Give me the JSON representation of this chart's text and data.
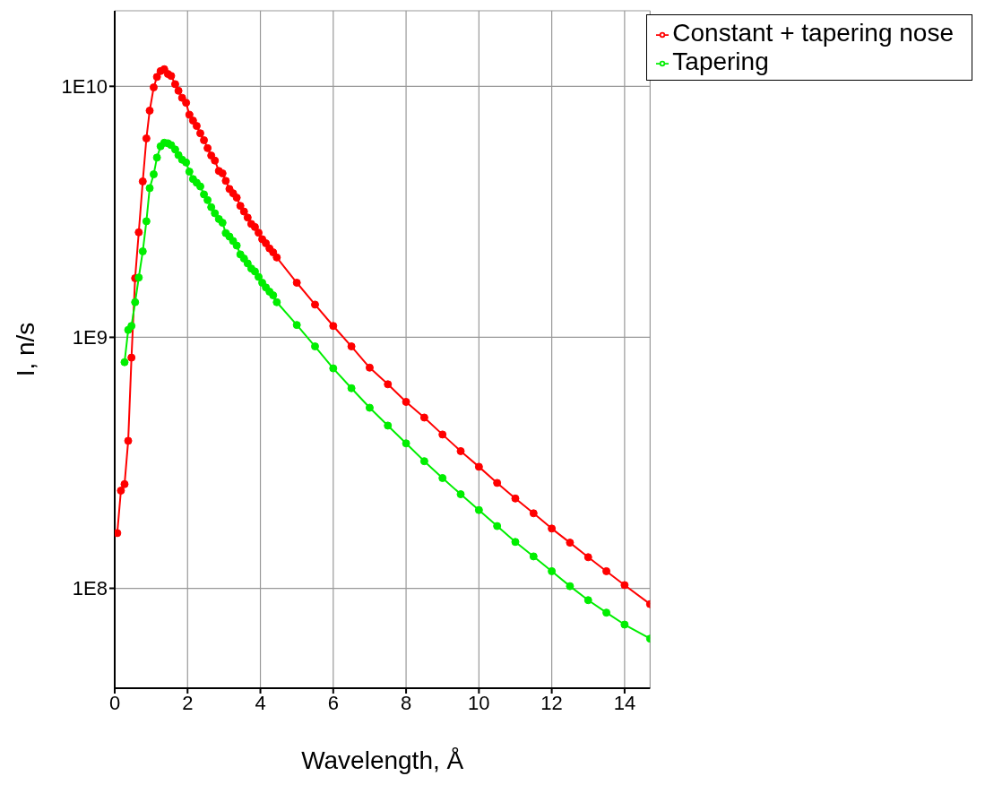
{
  "chart_data": {
    "type": "line",
    "xlabel": "Wavelength, Å",
    "ylabel": "I, n/s",
    "log": "y",
    "grid": true,
    "legend": "top right",
    "marker": "circle",
    "line_style": "solid",
    "xlim": [
      0,
      14.7
    ],
    "xticks": [
      0,
      2,
      4,
      6,
      8,
      10,
      12,
      14
    ],
    "ylim": [
      40000000,
      20000000000
    ],
    "yticks": [
      {
        "value": 100000000,
        "label": "1E8"
      },
      {
        "value": 1000000000,
        "label": "1E9"
      },
      {
        "value": 10000000000,
        "label": "1E10"
      }
    ],
    "series": [
      {
        "name": "Constant + tapering nose",
        "color": "#ff0000",
        "x": [
          0.07,
          0.17,
          0.27,
          0.37,
          0.46,
          0.56,
          0.66,
          0.77,
          0.87,
          0.96,
          1.07,
          1.16,
          1.26,
          1.36,
          1.46,
          1.55,
          1.66,
          1.75,
          1.85,
          1.96,
          2.05,
          2.15,
          2.25,
          2.35,
          2.45,
          2.55,
          2.65,
          2.75,
          2.86,
          2.96,
          3.05,
          3.15,
          3.25,
          3.35,
          3.45,
          3.55,
          3.65,
          3.75,
          3.85,
          3.95,
          4.05,
          4.15,
          4.25,
          4.35,
          4.45,
          5,
          5.5,
          6,
          6.5,
          7,
          7.5,
          8,
          8.5,
          9,
          9.5,
          10,
          10.5,
          11,
          11.5,
          12,
          12.5,
          13,
          13.5,
          14,
          14.7
        ],
        "values": [
          166000000,
          245000000,
          260000000,
          387000000,
          830000000,
          1720000000,
          2620000000,
          4180000000,
          6200000000,
          8000000000,
          9900000000,
          10900000000,
          11500000000,
          11700000000,
          11200000000,
          11000000000,
          10200000000,
          9600000000,
          9000000000,
          8600000000,
          7700000000,
          7300000000,
          6950000000,
          6500000000,
          6100000000,
          5670000000,
          5300000000,
          5060000000,
          4600000000,
          4500000000,
          4200000000,
          3900000000,
          3750000000,
          3600000000,
          3340000000,
          3170000000,
          3000000000,
          2830000000,
          2750000000,
          2610000000,
          2460000000,
          2370000000,
          2260000000,
          2180000000,
          2080000000,
          1650000000,
          1350000000,
          1110000000,
          920000000,
          757000000,
          650000000,
          553000000,
          479000000,
          410000000,
          352000000,
          305000000,
          263000000,
          228000000,
          199000000,
          173000000,
          152000000,
          133000000,
          117000000,
          103000000,
          86500000
        ]
      },
      {
        "name": "Tapering",
        "color": "#00ee00",
        "x": [
          0.27,
          0.37,
          0.46,
          0.56,
          0.66,
          0.77,
          0.87,
          0.96,
          1.07,
          1.16,
          1.26,
          1.36,
          1.46,
          1.55,
          1.66,
          1.75,
          1.85,
          1.96,
          2.05,
          2.15,
          2.25,
          2.35,
          2.45,
          2.55,
          2.65,
          2.75,
          2.86,
          2.96,
          3.05,
          3.15,
          3.25,
          3.35,
          3.45,
          3.55,
          3.65,
          3.75,
          3.85,
          3.95,
          4.05,
          4.15,
          4.25,
          4.35,
          4.45,
          5,
          5.5,
          6,
          6.5,
          7,
          7.5,
          8,
          8.5,
          9,
          9.5,
          10,
          10.5,
          11,
          11.5,
          12,
          12.5,
          13,
          13.5,
          14,
          14.7
        ],
        "values": [
          796000000,
          1070000000,
          1110000000,
          1380000000,
          1730000000,
          2200000000,
          2900000000,
          3930000000,
          4460000000,
          5200000000,
          5770000000,
          5960000000,
          5930000000,
          5830000000,
          5600000000,
          5320000000,
          5100000000,
          4970000000,
          4570000000,
          4270000000,
          4130000000,
          3990000000,
          3710000000,
          3520000000,
          3300000000,
          3120000000,
          2960000000,
          2860000000,
          2600000000,
          2520000000,
          2420000000,
          2320000000,
          2140000000,
          2060000000,
          1970000000,
          1880000000,
          1830000000,
          1740000000,
          1650000000,
          1580000000,
          1520000000,
          1470000000,
          1380000000,
          1120000000,
          920000000,
          752000000,
          627000000,
          524000000,
          445000000,
          378000000,
          321000000,
          275000000,
          237000000,
          205000000,
          177000000,
          153000000,
          134000000,
          117000000,
          102000000,
          89700000,
          80000000,
          71700000,
          63000000
        ]
      }
    ]
  }
}
